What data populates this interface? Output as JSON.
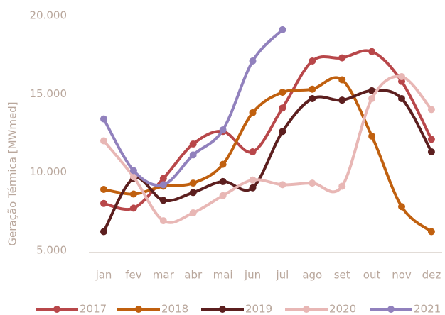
{
  "chart_data": {
    "type": "line",
    "y_label": "Geração Térmica [MWmed]",
    "categories": [
      "jan",
      "fev",
      "mar",
      "abr",
      "mai",
      "jun",
      "jul",
      "ago",
      "set",
      "out",
      "nov",
      "dez"
    ],
    "ylim": [
      5000,
      20000
    ],
    "yticks": [
      {
        "value": 5000,
        "label": "5.000"
      },
      {
        "value": 10000,
        "label": "10.000"
      },
      {
        "value": 15000,
        "label": "15.000"
      },
      {
        "value": 20000,
        "label": "20.000"
      }
    ],
    "grid": false,
    "legend": "bottom",
    "smooth": true,
    "series": [
      {
        "name": "2017",
        "color": "#b8474a",
        "values": [
          8000,
          7700,
          9600,
          11800,
          12600,
          11300,
          14100,
          17100,
          17300,
          17700,
          15800,
          12100
        ]
      },
      {
        "name": "2018",
        "color": "#c0600f",
        "values": [
          8900,
          8600,
          9100,
          9300,
          10500,
          13800,
          15100,
          15300,
          15900,
          12300,
          7800,
          6200
        ]
      },
      {
        "name": "2019",
        "color": "#5c1f1f",
        "values": [
          6200,
          9600,
          8200,
          8700,
          9400,
          9000,
          12600,
          14700,
          14600,
          15200,
          14700,
          11300
        ]
      },
      {
        "name": "2020",
        "color": "#e8b7b5",
        "values": [
          12000,
          9700,
          6900,
          7400,
          8500,
          9500,
          9200,
          9300,
          9100,
          14700,
          16100,
          14000
        ]
      },
      {
        "name": "2021",
        "color": "#9181bd",
        "values": [
          13400,
          10100,
          9200,
          11100,
          12700,
          17100,
          19100,
          null,
          null,
          null,
          null,
          null
        ]
      }
    ]
  }
}
